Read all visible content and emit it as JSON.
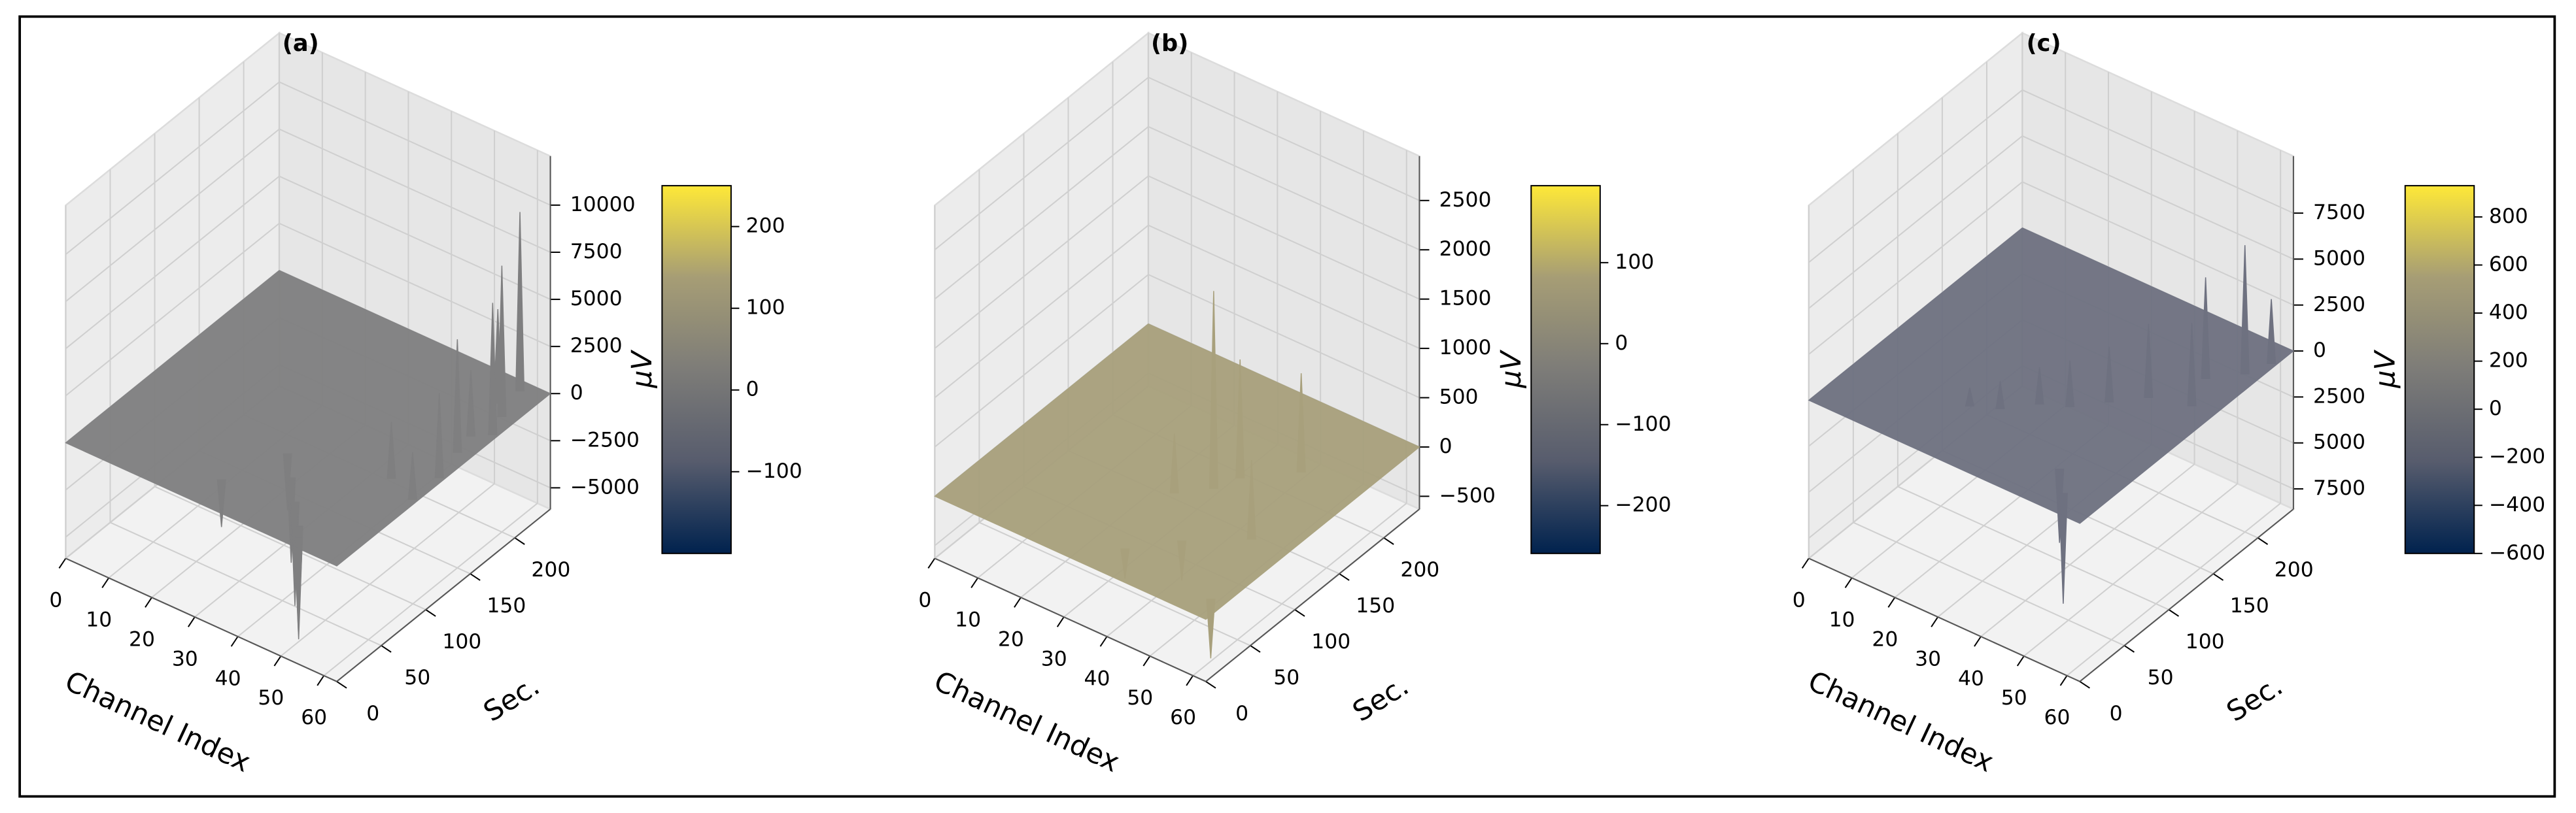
{
  "chart_data": [
    {
      "type": "surface3d",
      "title": "(a)",
      "xlabel": "Channel Index",
      "ylabel": "Sec.",
      "colorbar_label": "μV",
      "xlim": [
        0,
        63
      ],
      "xticks": [
        0,
        10,
        20,
        30,
        40,
        50,
        60
      ],
      "ylim": [
        0,
        240
      ],
      "yticks": [
        0,
        50,
        100,
        150,
        200
      ],
      "zlim": [
        -6130,
        12600
      ],
      "zticks": [
        10000,
        7500,
        5000,
        2500,
        0,
        {
          "value": -2500,
          "label": "−2500"
        },
        {
          "value": -5000,
          "label": "−5000"
        }
      ],
      "clim": [
        -200,
        250
      ],
      "cticks": [
        200,
        100,
        0,
        {
          "value": -100,
          "label": "−100"
        }
      ],
      "colormap": [
        "#00224e",
        "#575c6d",
        "#7d7c78",
        "#a69d75",
        "#fee838"
      ],
      "surface_color": "#7f7f80",
      "peaks": {
        "channel": [
          58,
          60,
          62,
          60,
          62,
          55,
          57,
          59,
          40,
          45,
          50,
          35,
          30,
          52,
          62
        ],
        "sec": [
          230,
          200,
          180,
          150,
          120,
          100,
          210,
          170,
          60,
          40,
          20,
          80,
          30,
          10,
          90
        ],
        "values": [
          9500,
          8000,
          7000,
          6000,
          4500,
          3000,
          5000,
          3500,
          -4500,
          -5500,
          -6000,
          -3000,
          -2500,
          -5000,
          2500
        ]
      }
    },
    {
      "type": "surface3d",
      "title": "(b)",
      "xlabel": "Channel Index",
      "ylabel": "Sec.",
      "colorbar_label": "μV",
      "xlim": [
        0,
        63
      ],
      "xticks": [
        0,
        10,
        20,
        30,
        40,
        50,
        60
      ],
      "ylim": [
        0,
        240
      ],
      "yticks": [
        0,
        50,
        100,
        150,
        200
      ],
      "zlim": [
        -630,
        2950
      ],
      "zticks": [
        2500,
        2000,
        1500,
        1000,
        500,
        0,
        {
          "value": -500,
          "label": "−500"
        }
      ],
      "clim": [
        -259,
        195
      ],
      "cticks": [
        100,
        0,
        {
          "value": -100,
          "label": "−100"
        },
        {
          "value": -200,
          "label": "−200"
        }
      ],
      "colormap": [
        "#00224e",
        "#575c6d",
        "#7d7c78",
        "#a69d75",
        "#fee838"
      ],
      "surface_color": "#a8a07c",
      "peaks": {
        "channel": [
          40,
          42,
          50,
          55,
          45,
          60,
          35,
          38
        ],
        "sec": [
          120,
          140,
          170,
          90,
          60,
          20,
          100,
          30
        ],
        "values": [
          2000,
          1200,
          1000,
          800,
          -400,
          -600,
          600,
          -300
        ]
      }
    },
    {
      "type": "surface3d",
      "title": "(c)",
      "xlabel": "Channel Index",
      "ylabel": "Sec.",
      "colorbar_label": "μV",
      "xlim": [
        0,
        63
      ],
      "xticks": [
        0,
        10,
        20,
        30,
        40,
        50,
        60
      ],
      "ylim": [
        0,
        240
      ],
      "yticks": [
        0,
        50,
        100,
        150,
        200
      ],
      "zlim": [
        -8600,
        10600
      ],
      "zticks": [
        7500,
        5000,
        2500,
        0,
        {
          "value": -2500,
          "label": "2500"
        },
        {
          "value": -5000,
          "label": "5000"
        },
        {
          "value": -7500,
          "label": "7500"
        }
      ],
      "clim": [
        -600,
        930
      ],
      "cticks": [
        800,
        600,
        400,
        200,
        0,
        {
          "value": -200,
          "label": "−200"
        },
        {
          "value": -400,
          "label": "−400"
        },
        {
          "value": -600,
          "label": "−600"
        }
      ],
      "colormap": [
        "#00224e",
        "#575c6d",
        "#7d7c78",
        "#a69d75",
        "#fee838"
      ],
      "surface_color": "#6e7180",
      "peaks": {
        "channel": [
          60,
          55,
          58,
          62,
          50,
          45,
          40,
          35,
          30,
          25,
          50,
          55
        ],
        "sec": [
          200,
          180,
          150,
          220,
          140,
          120,
          100,
          90,
          70,
          60,
          40,
          20
        ],
        "values": [
          7000,
          5500,
          4500,
          3500,
          4000,
          3000,
          2500,
          2000,
          1500,
          1000,
          -4000,
          -6000
        ]
      }
    }
  ]
}
